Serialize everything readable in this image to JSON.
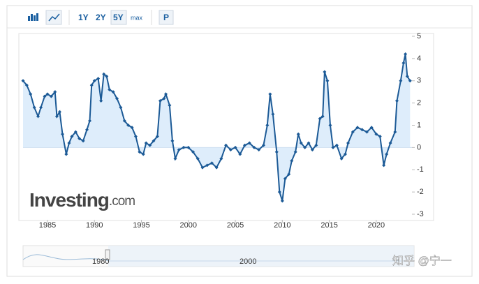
{
  "chart_data": {
    "type": "line",
    "x": [
      1982.4,
      1982.8,
      1983.2,
      1983.6,
      1984.0,
      1984.3,
      1984.7,
      1985.0,
      1985.4,
      1985.8,
      1986.0,
      1986.3,
      1986.6,
      1987.0,
      1987.3,
      1987.6,
      1988.0,
      1988.4,
      1988.8,
      1989.2,
      1989.5,
      1989.7,
      1990.0,
      1990.4,
      1990.7,
      1991.0,
      1991.3,
      1991.6,
      1992.0,
      1992.4,
      1992.8,
      1993.2,
      1993.6,
      1994.0,
      1994.4,
      1994.8,
      1995.2,
      1995.5,
      1995.9,
      1996.3,
      1996.7,
      1997.0,
      1997.4,
      1997.6,
      1998.0,
      1998.3,
      1998.6,
      1999.0,
      1999.5,
      2000.0,
      2000.5,
      2001.0,
      2001.5,
      2002.0,
      2002.5,
      2003.0,
      2003.5,
      2004.0,
      2004.5,
      2005.0,
      2005.5,
      2006.0,
      2006.5,
      2007.0,
      2007.5,
      2008.0,
      2008.4,
      2008.7,
      2009.0,
      2009.4,
      2009.7,
      2010.0,
      2010.3,
      2010.7,
      2011.0,
      2011.4,
      2011.7,
      2012.0,
      2012.4,
      2012.8,
      2013.2,
      2013.6,
      2014.0,
      2014.3,
      2014.5,
      2014.8,
      2015.1,
      2015.4,
      2015.8,
      2016.3,
      2016.7,
      2017.0,
      2017.5,
      2018.0,
      2018.5,
      2019.0,
      2019.5,
      2020.0,
      2020.4,
      2020.8,
      2021.1,
      2021.5,
      2022.0,
      2022.2,
      2022.6,
      2022.9,
      2023.1,
      2023.3,
      2023.6
    ],
    "series": [
      {
        "color": "#1c5a96",
        "fill": "#d8eafa",
        "values": [
          3.0,
          2.8,
          2.4,
          1.8,
          1.4,
          1.8,
          2.3,
          2.4,
          2.3,
          2.5,
          1.4,
          1.6,
          0.6,
          -0.3,
          0.2,
          0.5,
          0.7,
          0.4,
          0.3,
          0.8,
          1.2,
          2.8,
          3.0,
          3.1,
          2.1,
          3.3,
          3.2,
          2.6,
          2.5,
          2.2,
          1.8,
          1.2,
          1.0,
          0.9,
          0.5,
          -0.2,
          -0.3,
          0.2,
          0.1,
          0.3,
          0.5,
          2.1,
          2.2,
          2.4,
          1.9,
          0.3,
          -0.5,
          -0.1,
          0.0,
          0.0,
          -0.2,
          -0.5,
          -0.9,
          -0.8,
          -0.7,
          -0.9,
          -0.5,
          0.1,
          -0.1,
          0.0,
          -0.3,
          0.1,
          0.2,
          0.0,
          -0.1,
          0.1,
          1.0,
          2.4,
          1.5,
          -0.2,
          -2.0,
          -2.4,
          -1.4,
          -1.2,
          -0.6,
          -0.2,
          0.6,
          0.2,
          0.0,
          0.2,
          -0.1,
          0.1,
          1.3,
          1.4,
          3.4,
          3.0,
          1.0,
          0.0,
          0.1,
          -0.5,
          -0.3,
          0.2,
          0.7,
          0.9,
          0.8,
          0.7,
          0.9,
          0.6,
          0.5,
          -0.8,
          -0.3,
          0.2,
          0.7,
          2.1,
          3.0,
          3.8,
          4.2,
          3.2,
          3.0
        ]
      }
    ],
    "xlim": [
      1982.4,
      2023.8
    ],
    "xticks": [
      1985,
      1990,
      1995,
      2000,
      2005,
      2010,
      2015,
      2020
    ],
    "ylim": [
      -3,
      5
    ],
    "yticks": [
      5,
      4,
      3,
      2,
      1,
      0,
      -1,
      -2,
      -3
    ],
    "grid": false
  },
  "toolbar": {
    "buttons": [
      "1Y",
      "2Y",
      "5Y",
      "max",
      "P"
    ]
  },
  "logo": {
    "name": "Investing",
    "suffix": ".com"
  },
  "navigator": {
    "labels": [
      "1980",
      "2000"
    ]
  },
  "watermark": "知乎 @宁一"
}
